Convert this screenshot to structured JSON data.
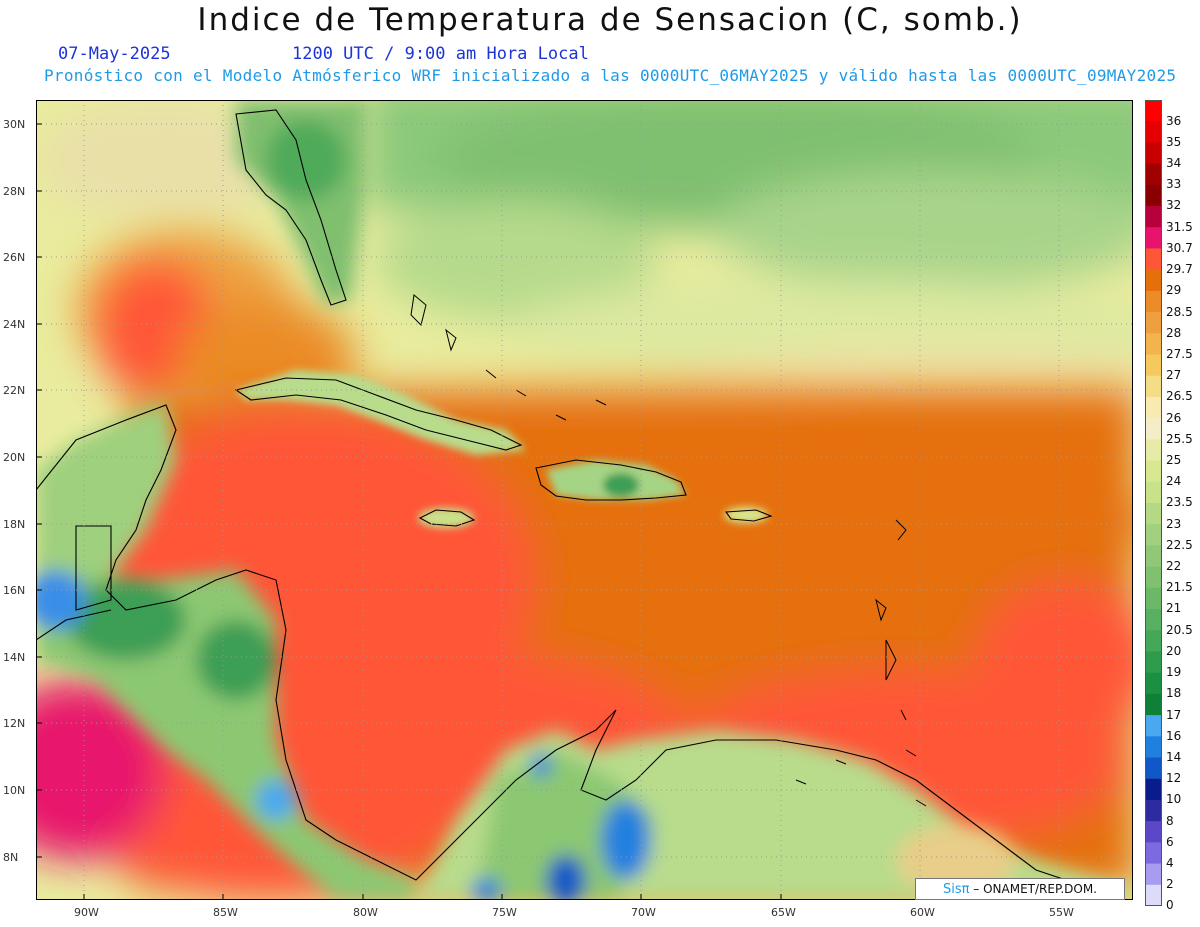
{
  "header": {
    "title": "Indice de Temperatura de Sensacion (C, somb.)",
    "date": "07-May-2025",
    "time": "1200 UTC / 9:00 am Hora Local",
    "model_line": "Pronóstico con el Modelo Atmósferico WRF inicializado a las 0000UTC_06MAY2025 y válido hasta las  0000UTC_09MAY2025"
  },
  "axes": {
    "latitudes": [
      "30N",
      "28N",
      "26N",
      "24N",
      "22N",
      "20N",
      "18N",
      "16N",
      "14N",
      "12N",
      "10N",
      "8N"
    ],
    "longitudes": [
      "90W",
      "85W",
      "80W",
      "75W",
      "70W",
      "65W",
      "60W",
      "55W"
    ]
  },
  "colorbar": {
    "levels": [
      {
        "label": "36",
        "color": "#ff0000"
      },
      {
        "label": "35",
        "color": "#e60000"
      },
      {
        "label": "34",
        "color": "#c80000"
      },
      {
        "label": "33",
        "color": "#a00000"
      },
      {
        "label": "32",
        "color": "#8a0000"
      },
      {
        "label": "31.5",
        "color": "#b8003c"
      },
      {
        "label": "30.7",
        "color": "#e8136c"
      },
      {
        "label": "29.7",
        "color": "#ff5638"
      },
      {
        "label": "29",
        "color": "#e5700a"
      },
      {
        "label": "28.5",
        "color": "#eb8c28"
      },
      {
        "label": "28",
        "color": "#eea040"
      },
      {
        "label": "27.5",
        "color": "#f2b44c"
      },
      {
        "label": "27",
        "color": "#f5c860"
      },
      {
        "label": "26.5",
        "color": "#f5dc86"
      },
      {
        "label": "26",
        "color": "#f8eab0"
      },
      {
        "label": "25.5",
        "color": "#f4eec8"
      },
      {
        "label": "25",
        "color": "#e6eca8"
      },
      {
        "label": "24",
        "color": "#d8e890"
      },
      {
        "label": "23.5",
        "color": "#c8e28a"
      },
      {
        "label": "23",
        "color": "#b4d884"
      },
      {
        "label": "22.5",
        "color": "#a0d080"
      },
      {
        "label": "22",
        "color": "#90c878"
      },
      {
        "label": "21.5",
        "color": "#80c070"
      },
      {
        "label": "21",
        "color": "#6cb868"
      },
      {
        "label": "20.5",
        "color": "#58b060"
      },
      {
        "label": "20",
        "color": "#44a858"
      },
      {
        "label": "19",
        "color": "#2e9c4c"
      },
      {
        "label": "18",
        "color": "#1a9040"
      },
      {
        "label": "17",
        "color": "#108038"
      },
      {
        "label": "16",
        "color": "#4aa8f0"
      },
      {
        "label": "14",
        "color": "#2080e0"
      },
      {
        "label": "12",
        "color": "#1058c8"
      },
      {
        "label": "10",
        "color": "#0a1c8c"
      },
      {
        "label": "8",
        "color": "#2c2ca0"
      },
      {
        "label": "6",
        "color": "#5a48c8"
      },
      {
        "label": "4",
        "color": "#7c6ae0"
      },
      {
        "label": "2",
        "color": "#a89cf0"
      },
      {
        "label": "0",
        "color": "#dcdcf8"
      }
    ]
  },
  "credit": {
    "brand": "Sisπ",
    "text": "– ONAMET/REP.DOM."
  }
}
